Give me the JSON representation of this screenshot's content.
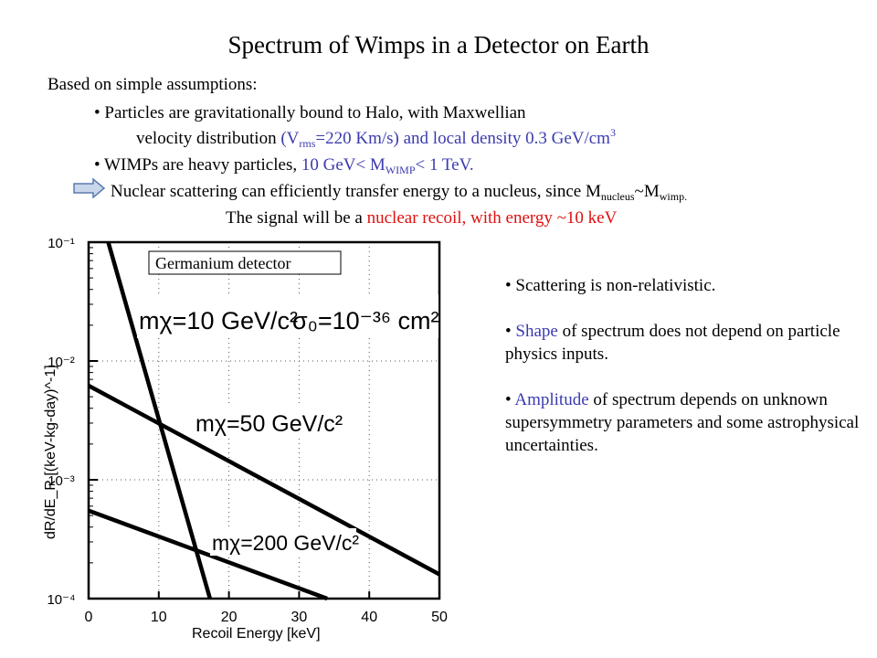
{
  "slide": {
    "title": "Spectrum of  Wimps in a Detector on Earth",
    "intro": "Based on simple assumptions:",
    "bullet1_a": "• Particles are gravitationally bound to Halo, with Maxwellian",
    "bullet1_b": "velocity distribution ",
    "vrms_open": "(V",
    "vrms_sub": "rms",
    "vrms_rest": "=220 Km/s) and local density 0.3 GeV/cm",
    "vrms_sup": "3",
    "bullet2_a": "• WIMPs are heavy particles, ",
    "bullet2_b": "10 GeV< M",
    "bullet2_sub": "WIMP",
    "bullet2_c": "< 1 TeV.",
    "arrow_icon": "right-arrow-icon",
    "nuclear_a": "Nuclear scattering can efficiently transfer energy to a nucleus, since M",
    "nuclear_sub1": "nucleus",
    "nuclear_b": "~M",
    "nuclear_sub2": "wimp.",
    "signal_a": "The signal will be a ",
    "signal_b": "nuclear recoil",
    "signal_c": ", with energy ~10 keV",
    "colors": {
      "blue": "#3b3bb0",
      "red": "#e01010"
    }
  },
  "notes": {
    "n1": "• Scattering is non-relativistic.",
    "n2_bullet": "• ",
    "n2_em": "Shape",
    "n2_rest": " of spectrum does not depend on particle physics inputs.",
    "n3_bullet": "• ",
    "n3_em": "Amplitude",
    "n3_rest": " of spectrum depends on unknown supersymmetry parameters and some astrophysical uncertainties."
  },
  "chart_data": {
    "type": "line",
    "xlabel": "Recoil Energy [keV]",
    "ylabel": "dR/dE_R  [(keV-kg-day)^-1]",
    "xlim": [
      0,
      50
    ],
    "ylim": [
      0.0001,
      0.1
    ],
    "log_y": true,
    "x_ticks": [
      "0",
      "10",
      "20",
      "30",
      "40",
      "50"
    ],
    "y_ticks": [
      "10⁻¹",
      "10⁻²",
      "10⁻³",
      "10⁻⁴"
    ],
    "grid": "dotted",
    "annotation_box": "Germanium detector",
    "cross_section_label": "σ₀=10⁻³⁶ cm²",
    "series": [
      {
        "name": "mχ=10 GeV/c²",
        "x": [
          2.8,
          17.3
        ],
        "y": [
          0.1,
          0.0001
        ]
      },
      {
        "name": "mχ=50 GeV/c²",
        "x": [
          0,
          50
        ],
        "y": [
          0.0062,
          0.00016
        ]
      },
      {
        "name": "mχ=200 GeV/c²",
        "x": [
          0,
          34
        ],
        "y": [
          0.00055,
          0.0001
        ]
      }
    ]
  }
}
